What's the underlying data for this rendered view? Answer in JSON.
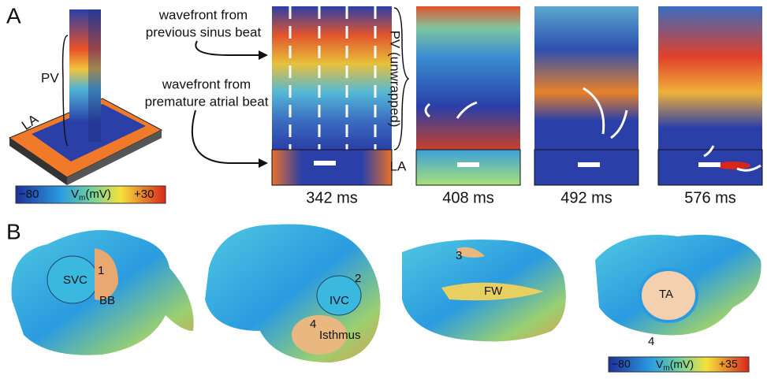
{
  "panel_a": {
    "letter": "A",
    "annotation_top": [
      "wavefront from",
      "previous sinus beat"
    ],
    "annotation_bottom": [
      "wavefront from",
      "premature atrial beat"
    ],
    "model_labels": {
      "pv": "PV",
      "la": "LA"
    },
    "unwrapped_labels": {
      "pv": "PV (unwrapped)",
      "la": "LA"
    },
    "times": [
      "342 ms",
      "408 ms",
      "492 ms",
      "576 ms"
    ],
    "colorbar": {
      "min": "−80",
      "symbol": "V",
      "subscript": "m",
      "unit": "(mV)",
      "max": "+30"
    }
  },
  "panel_b": {
    "letter": "B",
    "labels": {
      "svc": "SVC",
      "one": "1",
      "bb": "BB",
      "two": "2",
      "ivc": "IVC",
      "four_a": "4",
      "isthmus": "Isthmus",
      "three": "3",
      "fw": "FW",
      "ta": "TA",
      "four_b": "4"
    },
    "colorbar": {
      "min": "−80",
      "symbol": "V",
      "subscript": "m",
      "unit": "(mV)",
      "max": "+35"
    }
  }
}
